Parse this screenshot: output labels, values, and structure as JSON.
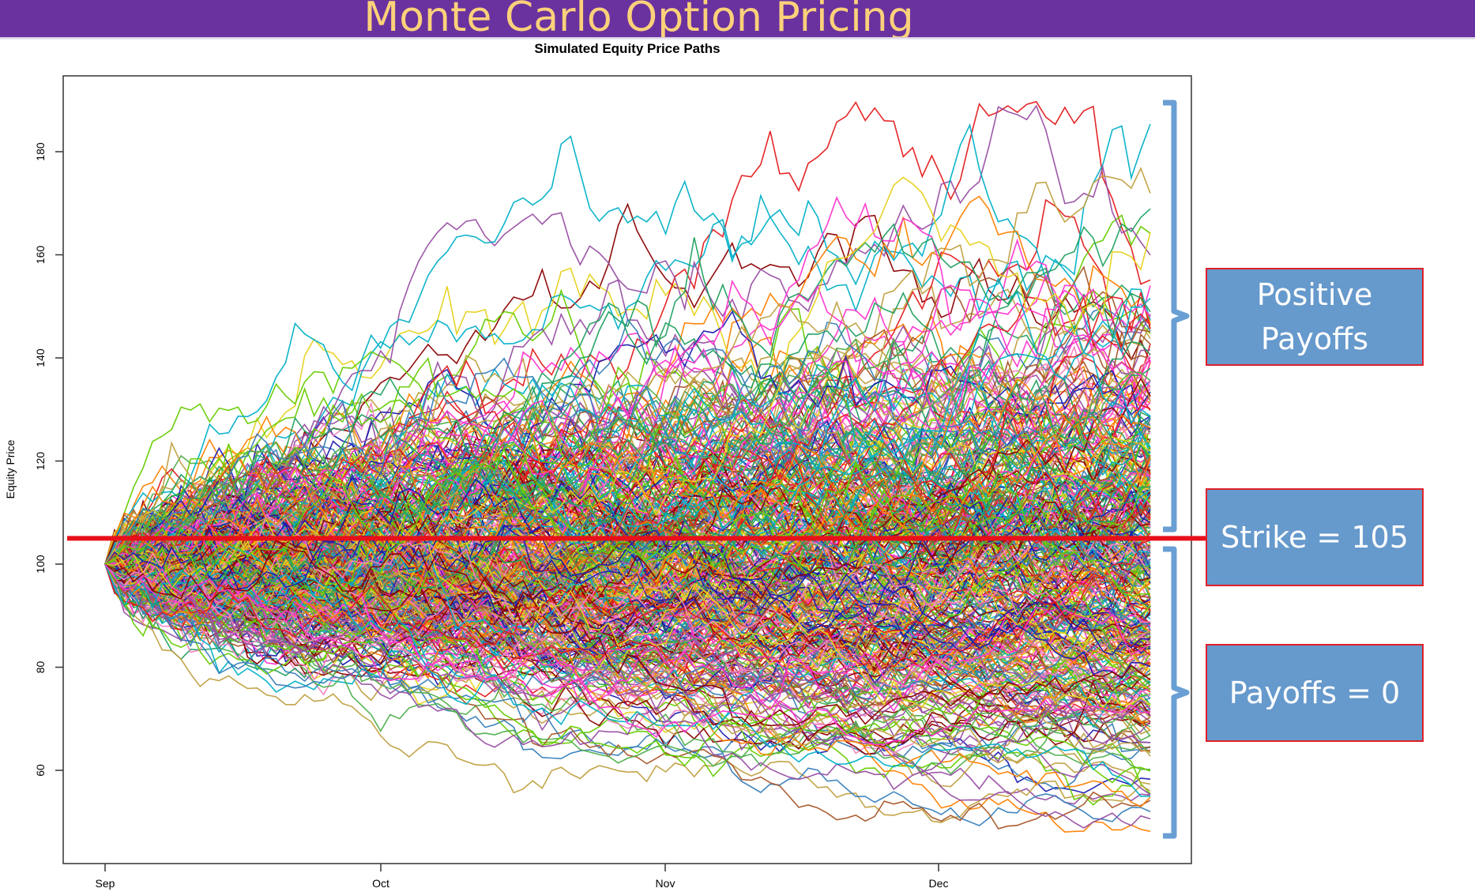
{
  "banner": {
    "title": "Monte Carlo Option Pricing",
    "background": "#6a329f",
    "text_color": "#fbd17a"
  },
  "callouts": {
    "positive": "Positive Payoffs",
    "strike": "Strike = 105",
    "zero": "Payoffs = 0",
    "fill": "#6699cc",
    "border": "#e0202a"
  },
  "chart_data": {
    "type": "line",
    "title": "Simulated Equity Price Paths",
    "xlabel": "",
    "ylabel": "Equity Price",
    "x_ticks": [
      "Sep",
      "Oct",
      "Nov",
      "Dec"
    ],
    "y_ticks": [
      60,
      80,
      100,
      120,
      140,
      160,
      180
    ],
    "ylim": [
      45,
      195
    ],
    "grid": false,
    "legend": "none",
    "start_price": 100,
    "strike_line": {
      "y": 105,
      "color": "#e8101a"
    },
    "bracket_color": "#6a9fd4",
    "upper_envelope": [
      100,
      121,
      139,
      151,
      161,
      171,
      189
    ],
    "lower_envelope": [
      100,
      85,
      75,
      66,
      61,
      54,
      49
    ],
    "envelope_x": [
      "Sep",
      "Sep 15",
      "Oct",
      "Oct 15",
      "Nov",
      "Dec",
      "Dec 25"
    ],
    "series_palette": [
      "#e41a1c",
      "#377eb8",
      "#4daf4a",
      "#984ea3",
      "#ff7f00",
      "#e6d21c",
      "#a65628",
      "#f781bf",
      "#00b0c8",
      "#1b1bb0",
      "#20a060",
      "#c0a040",
      "#8b0000",
      "#ff33cc",
      "#66cc00"
    ]
  }
}
